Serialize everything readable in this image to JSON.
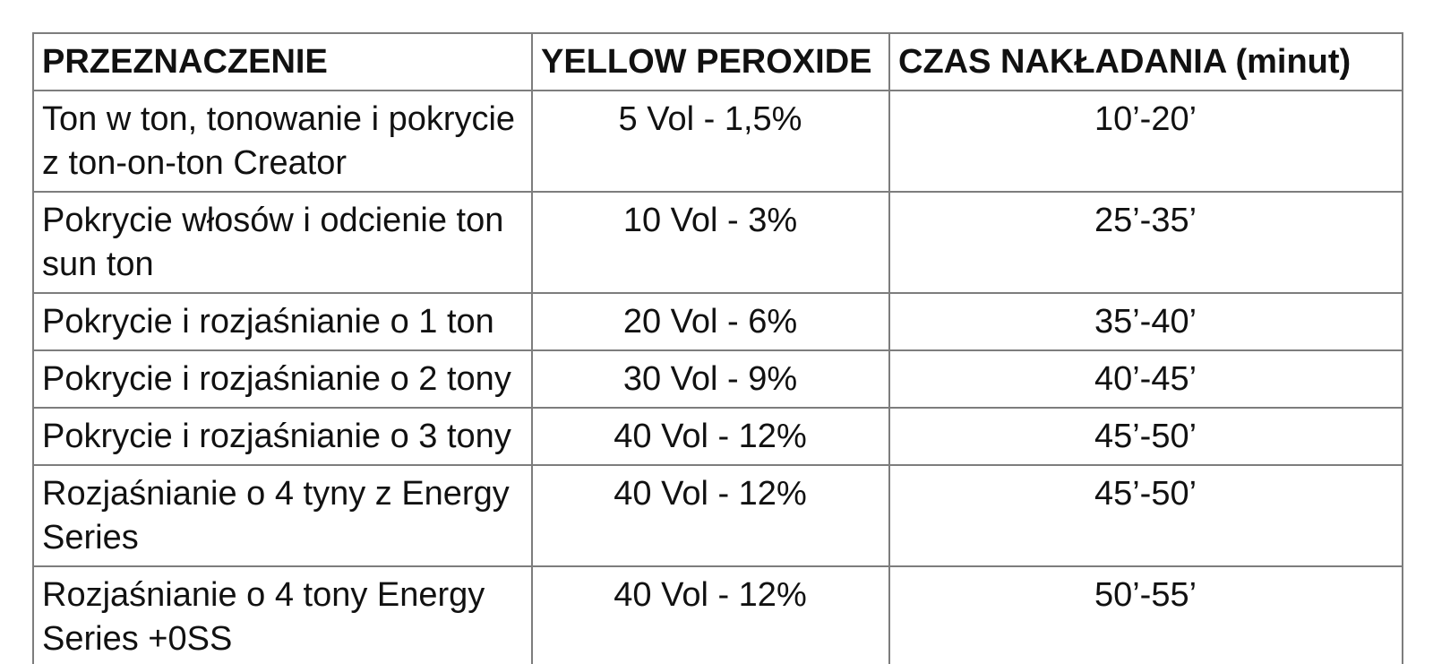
{
  "colors": {
    "background": "#ffffff",
    "border": "#7d7d7d",
    "text": "#111111"
  },
  "table": {
    "headers": [
      "PRZEZNACZENIE",
      "YELLOW PEROXIDE",
      "CZAS NAKŁADANIA (minut)"
    ],
    "rows": [
      {
        "purpose": "Ton w ton, tonowanie i pokrycie z ton-on-ton Creator",
        "peroxide": "5 Vol - 1,5%",
        "time": "10’-20’"
      },
      {
        "purpose": "Pokrycie włosów i odcienie ton sun ton",
        "peroxide": "10 Vol - 3%",
        "time": "25’-35’"
      },
      {
        "purpose": "Pokrycie i rozjaśnianie o 1 ton",
        "peroxide": "20 Vol - 6%",
        "time": "35’-40’"
      },
      {
        "purpose": "Pokrycie i rozjaśnianie o 2 tony",
        "peroxide": "30 Vol - 9%",
        "time": "40’-45’"
      },
      {
        "purpose": "Pokrycie i rozjaśnianie o 3 tony",
        "peroxide": "40 Vol - 12%",
        "time": "45’-50’"
      },
      {
        "purpose": "Rozjaśnianie o 4 tyny z Energy Series",
        "peroxide": "40 Vol - 12%",
        "time": "45’-50’"
      },
      {
        "purpose": "Rozjaśnianie o 4 tony Energy Series +0SS",
        "peroxide": "40 Vol - 12%",
        "time": "50’-55’"
      }
    ]
  }
}
